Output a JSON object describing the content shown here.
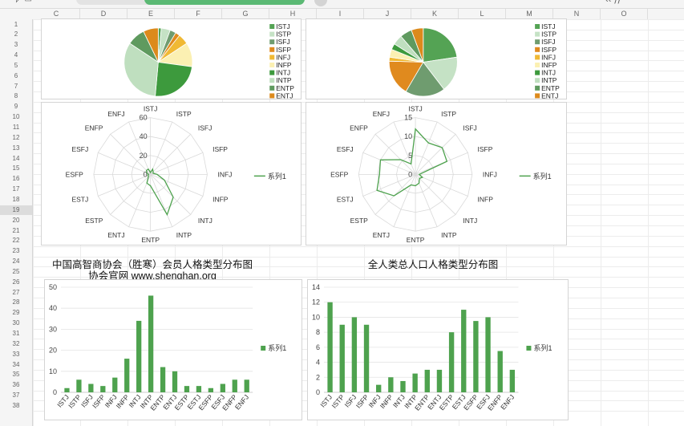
{
  "columns": [
    "C",
    "D",
    "E",
    "F",
    "G",
    "H",
    "I",
    "J",
    "K",
    "L",
    "M",
    "N",
    "O"
  ],
  "rows": [
    "1",
    "2",
    "3",
    "4",
    "5",
    "6",
    "7",
    "8",
    "9",
    "10",
    "11",
    "12",
    "13",
    "14",
    "15",
    "16",
    "17",
    "18",
    "19",
    "20",
    "21",
    "22",
    "23",
    "24",
    "25",
    "26",
    "27",
    "28",
    "29",
    "30",
    "31",
    "32",
    "33",
    "34",
    "35",
    "36",
    "37",
    "38"
  ],
  "selected_row": "19",
  "titles": {
    "left_line1": "中国高智商协会（胜寒）会员人格类型分布图",
    "left_line2": "协会官网 www.shenghan.org",
    "right": "全人类总人口人格类型分布图"
  },
  "colors": {
    "accent": "#4ea24e",
    "pie_palette": [
      "#54a354",
      "#c5e2c5",
      "#6f9c6f",
      "#e08a1e",
      "#f0b934",
      "#fbf0b2",
      "#3d9a3d",
      "#bfdfbf",
      "#5f9a5f",
      "#dc8a1c"
    ]
  },
  "chart_data": [
    {
      "type": "pie",
      "name": "left-pie",
      "legend_position": "right",
      "categories": [
        "ISTJ",
        "ISTP",
        "ISFJ",
        "ISFP",
        "INFJ",
        "INFP",
        "INTJ",
        "INTP",
        "ENTP",
        "ENTJ"
      ],
      "values": [
        2,
        6,
        4,
        3,
        7,
        16,
        34,
        46,
        12,
        10
      ]
    },
    {
      "type": "pie",
      "name": "right-pie",
      "legend_position": "right",
      "categories": [
        "ISTJ",
        "ISTP",
        "ISFJ",
        "ISFP",
        "INFJ",
        "INFP",
        "INTJ",
        "INTP",
        "ENTP",
        "ENTJ"
      ],
      "values": [
        12,
        9,
        10,
        9,
        1,
        2,
        1.5,
        2.5,
        3,
        3
      ]
    },
    {
      "type": "radar",
      "name": "left-radar",
      "categories": [
        "ISTJ",
        "ISTP",
        "ISFJ",
        "ISFP",
        "INFJ",
        "INFP",
        "INTJ",
        "INTP",
        "ENTP",
        "ENTJ",
        "ESTP",
        "ESTJ",
        "ESFP",
        "ESFJ",
        "ENFP",
        "ENFJ"
      ],
      "series": [
        {
          "name": "系列1",
          "values": [
            2,
            6,
            4,
            3,
            7,
            16,
            34,
            46,
            12,
            10,
            3,
            3,
            2,
            4,
            6,
            6
          ]
        }
      ],
      "ylim": [
        0,
        60
      ],
      "ticks": [
        0,
        20,
        40,
        60
      ],
      "legend_position": "right"
    },
    {
      "type": "radar",
      "name": "right-radar",
      "categories": [
        "ISTJ",
        "ISTP",
        "ISFJ",
        "ISFP",
        "INFJ",
        "INFP",
        "INTJ",
        "INTP",
        "ENTP",
        "ENTJ",
        "ESTP",
        "ESTJ",
        "ESFP",
        "ESFJ",
        "ENFP",
        "ENFJ"
      ],
      "series": [
        {
          "name": "系列1",
          "values": [
            12,
            9,
            10,
            9,
            1,
            2,
            1.5,
            2.5,
            3,
            3,
            8,
            11,
            9.5,
            10,
            5.5,
            3
          ]
        }
      ],
      "ylim": [
        0,
        15
      ],
      "ticks": [
        0,
        5,
        10,
        15
      ],
      "legend_position": "right"
    },
    {
      "type": "bar",
      "name": "left-bar",
      "categories": [
        "ISTJ",
        "ISTP",
        "ISFJ",
        "ISFP",
        "INFJ",
        "INFP",
        "INTJ",
        "INTP",
        "ENTP",
        "ENTJ",
        "ESTP",
        "ESTJ",
        "ESFP",
        "ESFJ",
        "ENFP",
        "ENFJ"
      ],
      "series": [
        {
          "name": "系列1",
          "values": [
            2,
            6,
            4,
            3,
            7,
            16,
            34,
            46,
            12,
            10,
            3,
            3,
            2,
            4,
            6,
            6
          ]
        }
      ],
      "ylim": [
        0,
        50
      ],
      "ticks": [
        0,
        10,
        20,
        30,
        40,
        50
      ],
      "grid": true,
      "legend_position": "right"
    },
    {
      "type": "bar",
      "name": "right-bar",
      "categories": [
        "ISTJ",
        "ISTP",
        "ISFJ",
        "ISFP",
        "INFJ",
        "INFP",
        "INTJ",
        "INTP",
        "ENTP",
        "ENTJ",
        "ESTP",
        "ESTJ",
        "ESFP",
        "ESFJ",
        "ENFP",
        "ENFJ"
      ],
      "series": [
        {
          "name": "系列1",
          "values": [
            12,
            9,
            10,
            9,
            1,
            2,
            1.5,
            2.5,
            3,
            3,
            8,
            11,
            9.5,
            10,
            5.5,
            3
          ]
        }
      ],
      "ylim": [
        0,
        14
      ],
      "ticks": [
        0,
        2,
        4,
        6,
        8,
        10,
        12,
        14
      ],
      "grid": true,
      "legend_position": "right"
    }
  ]
}
